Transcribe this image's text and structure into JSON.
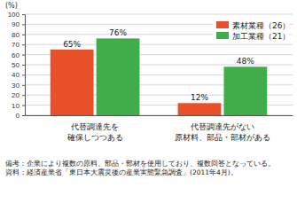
{
  "chart_data": {
    "type": "bar",
    "y_label": "(%)",
    "categories": [
      "代替調達先を\n確保しつつある",
      "代替調達先がない\n原材料、部品・部材がある"
    ],
    "series": [
      {
        "name": "素材業種（26）",
        "color": "#e8502a",
        "values": [
          65,
          12
        ],
        "value_labels": [
          "65%",
          "12%"
        ]
      },
      {
        "name": "加工業種（21）",
        "color": "#3fae49",
        "values": [
          76,
          48
        ],
        "value_labels": [
          "76%",
          "48%"
        ]
      }
    ],
    "ylim": [
      0,
      100
    ],
    "yticks": [
      0,
      10,
      20,
      30,
      40,
      50,
      60,
      70,
      80,
      90,
      100
    ],
    "grid": true,
    "legend": "top-right",
    "data_labels": true,
    "annotations": [
      "備考：企業により複数の原料、部品・部材を使用しており、複数回答となっている。",
      "資料：経済産業省「東日本大震災後の産業実態緊急調査」(2011年4月)。"
    ]
  }
}
